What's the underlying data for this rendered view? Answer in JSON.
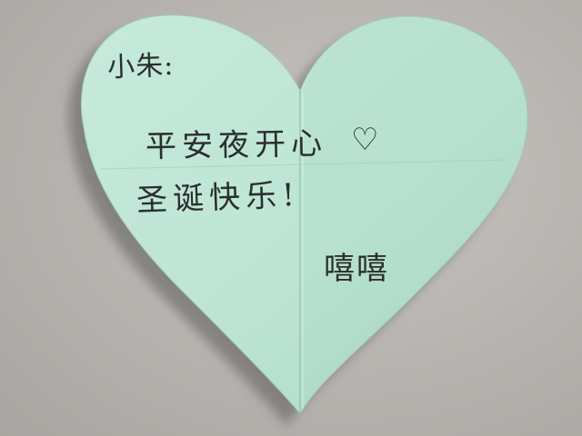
{
  "scene": {
    "background_color": "#b9b6b2",
    "paper_color": "#bfe6d7",
    "ink_color": "#2a2f2c"
  },
  "note": {
    "salutation": "小朱:",
    "line1": "平安夜开心",
    "heart_doodle": "♡",
    "line2": "圣诞快乐!",
    "signature": "嘻嘻"
  }
}
